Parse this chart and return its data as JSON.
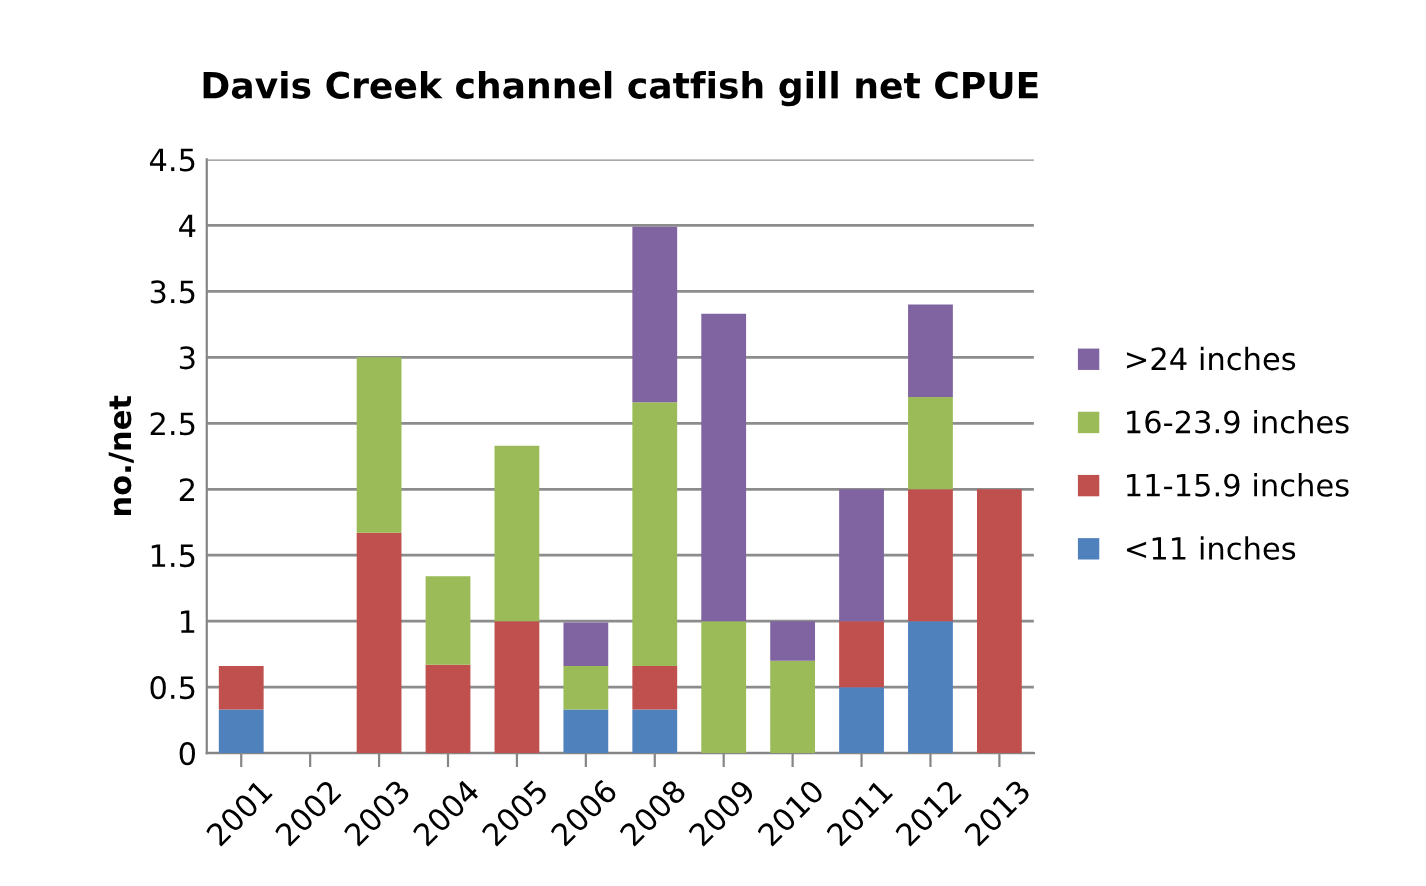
{
  "chart_data": {
    "type": "bar",
    "stacked": true,
    "title": "Davis Creek channel catfish gill net CPUE",
    "ylabel": "no./net",
    "categories": [
      "2001",
      "2002",
      "2003",
      "2004",
      "2005",
      "2006",
      "2008",
      "2009",
      "2010",
      "2011",
      "2012",
      "2013"
    ],
    "series": [
      {
        "name": "<11 inches",
        "color": "#4f81bd",
        "values": [
          0.33,
          0,
          0,
          0,
          0,
          0.33,
          0.33,
          0,
          0,
          0.5,
          1,
          0
        ]
      },
      {
        "name": "11-15.9 inches",
        "color": "#c0504d",
        "values": [
          0.33,
          0,
          1.67,
          0.67,
          1,
          0,
          0.33,
          0,
          0,
          0.5,
          1,
          2
        ]
      },
      {
        "name": "16-23.9 inches",
        "color": "#9bbb59",
        "values": [
          0,
          0,
          1.33,
          0.67,
          1.33,
          0.33,
          2,
          1,
          0.7,
          0,
          0.7,
          0
        ]
      },
      {
        "name": ">24 inches",
        "color": "#8064a2",
        "values": [
          0,
          0,
          0,
          0,
          0,
          0.33,
          1.33,
          2.33,
          0.3,
          1,
          0.7,
          0
        ]
      }
    ],
    "ylim": [
      0,
      4.5
    ],
    "yticks": [
      0,
      0.5,
      1,
      1.5,
      2,
      2.5,
      3,
      3.5,
      4,
      4.5
    ],
    "grid": "y",
    "legend": "right"
  }
}
